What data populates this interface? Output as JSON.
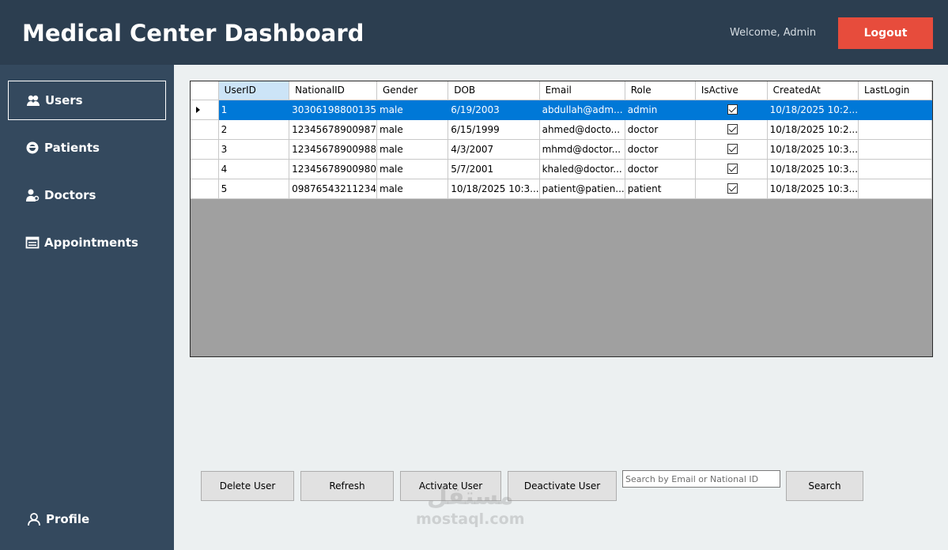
{
  "header": {
    "title": "Medical Center Dashboard",
    "welcome": "Welcome, Admin",
    "logout_label": "Logout"
  },
  "sidebar": {
    "items": [
      {
        "label": "Users",
        "icon": "users-icon",
        "active": true
      },
      {
        "label": "Patients",
        "icon": "patient-icon"
      },
      {
        "label": "Doctors",
        "icon": "doctor-icon"
      },
      {
        "label": "Appointments",
        "icon": "appointments-icon"
      }
    ],
    "profile_label": "Profile"
  },
  "grid": {
    "columns": [
      "UserID",
      "NationalID",
      "Gender",
      "DOB",
      "Email",
      "Role",
      "IsActive",
      "CreatedAt",
      "LastLogin"
    ],
    "rows": [
      {
        "UserID": "1",
        "NationalID": "30306198800135",
        "Gender": "male",
        "DOB": "6/19/2003",
        "Email": "abdullah@adm...",
        "Role": "admin",
        "IsActive": true,
        "CreatedAt": "10/18/2025 10:2...",
        "LastLogin": ""
      },
      {
        "UserID": "2",
        "NationalID": "12345678900987",
        "Gender": "male",
        "DOB": "6/15/1999",
        "Email": "ahmed@docto...",
        "Role": "doctor",
        "IsActive": true,
        "CreatedAt": "10/18/2025 10:2...",
        "LastLogin": ""
      },
      {
        "UserID": "3",
        "NationalID": "12345678900988",
        "Gender": "male",
        "DOB": "4/3/2007",
        "Email": "mhmd@doctor...",
        "Role": "doctor",
        "IsActive": true,
        "CreatedAt": "10/18/2025 10:3...",
        "LastLogin": ""
      },
      {
        "UserID": "4",
        "NationalID": "12345678900980",
        "Gender": "male",
        "DOB": "5/7/2001",
        "Email": "khaled@doctor...",
        "Role": "doctor",
        "IsActive": true,
        "CreatedAt": "10/18/2025 10:3...",
        "LastLogin": ""
      },
      {
        "UserID": "5",
        "NationalID": "09876543211234",
        "Gender": "male",
        "DOB": "10/18/2025 10:3...",
        "Email": "patient@patien...",
        "Role": "patient",
        "IsActive": true,
        "CreatedAt": "10/18/2025 10:3...",
        "LastLogin": ""
      }
    ],
    "selected_row": 0
  },
  "actions": {
    "delete_label": "Delete User",
    "refresh_label": "Refresh",
    "activate_label": "Activate User",
    "deactivate_label": "Deactivate User",
    "search_placeholder": "Search by Email or National ID",
    "search_label": "Search"
  },
  "watermark": {
    "arabic": "مستقل",
    "latin": "mostaql.com"
  },
  "colors": {
    "header": "#2c3e50",
    "sidebar": "#34495e",
    "logout": "#e74c3c",
    "selection": "#0078d7"
  }
}
